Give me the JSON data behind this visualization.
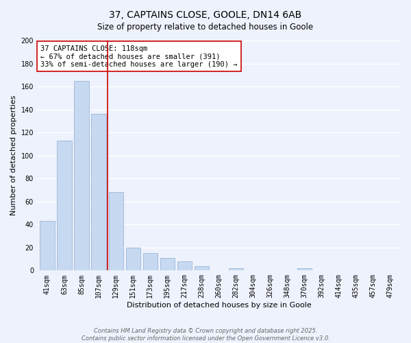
{
  "title": "37, CAPTAINS CLOSE, GOOLE, DN14 6AB",
  "subtitle": "Size of property relative to detached houses in Goole",
  "xlabel": "Distribution of detached houses by size in Goole",
  "ylabel": "Number of detached properties",
  "bar_labels": [
    "41sqm",
    "63sqm",
    "85sqm",
    "107sqm",
    "129sqm",
    "151sqm",
    "173sqm",
    "195sqm",
    "217sqm",
    "238sqm",
    "260sqm",
    "282sqm",
    "304sqm",
    "326sqm",
    "348sqm",
    "370sqm",
    "392sqm",
    "414sqm",
    "435sqm",
    "457sqm",
    "479sqm"
  ],
  "bar_values": [
    43,
    113,
    165,
    136,
    68,
    20,
    15,
    11,
    8,
    4,
    0,
    2,
    0,
    0,
    0,
    2,
    0,
    0,
    0,
    0,
    0
  ],
  "bar_color": "#c6d9f1",
  "bar_edge_color": "#9ab4d8",
  "vline_x_index": 3.5,
  "vline_color": "#cc0000",
  "annotation_line1": "37 CAPTAINS CLOSE: 118sqm",
  "annotation_line2": "← 67% of detached houses are smaller (391)",
  "annotation_line3": "33% of semi-detached houses are larger (190) →",
  "ylim": [
    0,
    200
  ],
  "yticks": [
    0,
    20,
    40,
    60,
    80,
    100,
    120,
    140,
    160,
    180,
    200
  ],
  "bg_color": "#eef2fc",
  "grid_color": "#ffffff",
  "footer_line1": "Contains HM Land Registry data © Crown copyright and database right 2025.",
  "footer_line2": "Contains public sector information licensed under the Open Government Licence v3.0.",
  "title_fontsize": 10,
  "subtitle_fontsize": 8.5,
  "annotation_fontsize": 7.5,
  "footer_fontsize": 6,
  "axis_label_fontsize": 8,
  "tick_fontsize": 7
}
